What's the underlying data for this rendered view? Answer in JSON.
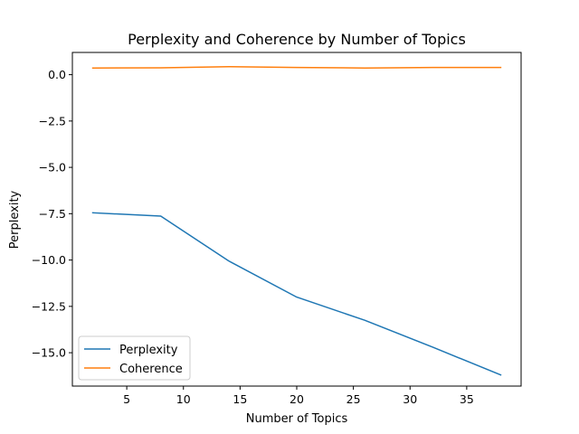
{
  "chart_data": {
    "type": "line",
    "title": "Perplexity and Coherence by Number of Topics",
    "xlabel": "Number of Topics",
    "ylabel": "Perplexity",
    "xlim": [
      0.2,
      39.8
    ],
    "ylim": [
      -16.8,
      1.2
    ],
    "x_ticks": [
      5,
      10,
      15,
      20,
      25,
      30,
      35
    ],
    "y_ticks": [
      0.0,
      -2.5,
      -5.0,
      -7.5,
      -10.0,
      -12.5,
      -15.0
    ],
    "x_tick_labels": [
      "5",
      "10",
      "15",
      "20",
      "25",
      "30",
      "35"
    ],
    "y_tick_labels": [
      "0.0",
      "−2.5",
      "−5.0",
      "−7.5",
      "−10.0",
      "−12.5",
      "−15.0"
    ],
    "x": [
      2,
      8,
      14,
      20,
      26,
      32,
      38
    ],
    "series": [
      {
        "name": "Perplexity",
        "color": "#1f77b4",
        "values": [
          -7.45,
          -7.63,
          -10.05,
          -12.0,
          -13.25,
          -14.7,
          -16.2
        ]
      },
      {
        "name": "Coherence",
        "color": "#ff7f0e",
        "values": [
          0.36,
          0.37,
          0.43,
          0.39,
          0.36,
          0.39,
          0.39
        ]
      }
    ],
    "grid": false,
    "legend_position": "lower-left"
  }
}
